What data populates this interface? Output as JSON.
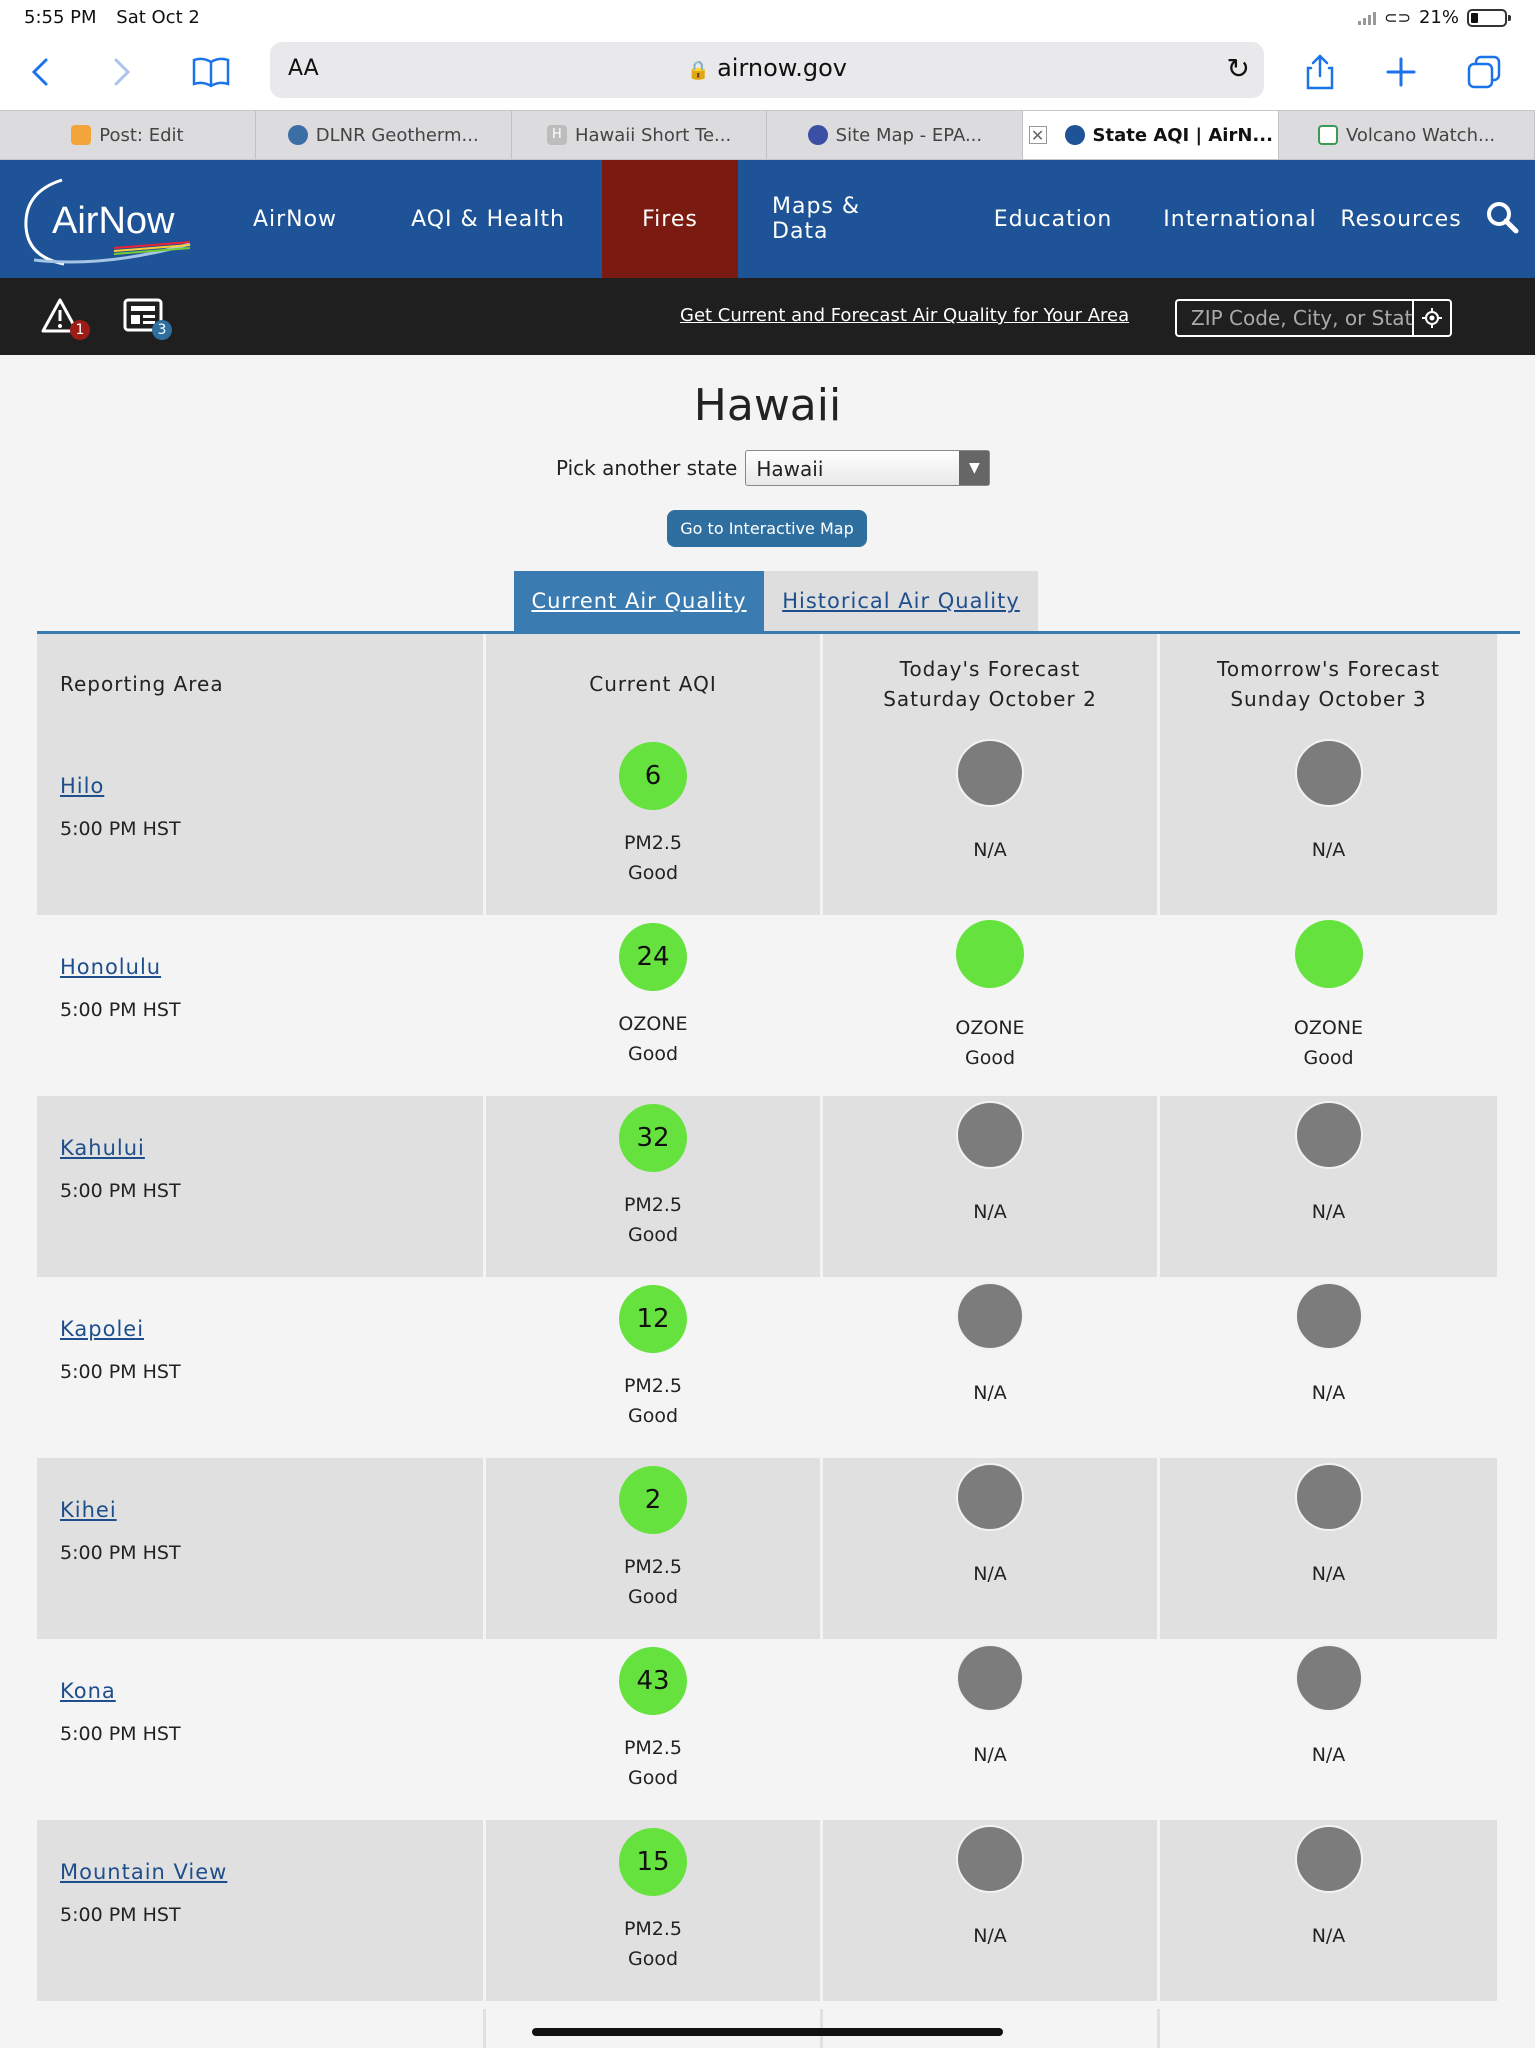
{
  "status": {
    "time": "5:55 PM",
    "date": "Sat Oct 2",
    "battery": "21%"
  },
  "browser": {
    "text_size_label": "AA",
    "url": "airnow.gov",
    "tabs": [
      {
        "label": "Post: Edit",
        "color": "#f3a43b"
      },
      {
        "label": "DLNR Geotherm...",
        "color": "#3b6ea5"
      },
      {
        "label": "Hawaii Short Te...",
        "color": "#bdbdbd"
      },
      {
        "label": "Site Map - EPA...",
        "color": "#3b4fa5"
      },
      {
        "label": "State AQI | AirN...",
        "color": "#1e5497"
      },
      {
        "label": "Volcano Watch...",
        "color": "#3d9a55"
      }
    ]
  },
  "nav": {
    "logo": "AirNow",
    "items": [
      "AirNow",
      "AQI & Health",
      "Fires",
      "Maps & Data",
      "Education",
      "International",
      "Resources"
    ]
  },
  "alert_bar": {
    "alerts_count": "1",
    "notices_count": "3",
    "link": "Get Current and Forecast Air Quality for Your Area",
    "zip_placeholder": "ZIP Code, City, or State"
  },
  "page": {
    "title": "Hawaii",
    "pick_label": "Pick another state",
    "selected_state": "Hawaii",
    "map_button": "Go to Interactive Map",
    "tab_current": "Current Air Quality",
    "tab_historical": "Historical Air Quality"
  },
  "table": {
    "headers": {
      "area": "Reporting Area",
      "current": "Current AQI",
      "today_1": "Today's Forecast",
      "today_2": "Saturday October 2",
      "tomorrow_1": "Tomorrow's Forecast",
      "tomorrow_2": "Sunday October 3"
    },
    "rows": [
      {
        "area": "Hilo",
        "time": "5:00 PM HST",
        "aqi": "6",
        "pollutant": "PM2.5",
        "category": "Good",
        "today": {
          "status": "N/A"
        },
        "tomorrow": {
          "status": "N/A"
        }
      },
      {
        "area": "Honolulu",
        "time": "5:00 PM HST",
        "aqi": "24",
        "pollutant": "OZONE",
        "category": "Good",
        "today": {
          "pollutant": "OZONE",
          "category": "Good"
        },
        "tomorrow": {
          "pollutant": "OZONE",
          "category": "Good"
        }
      },
      {
        "area": "Kahului",
        "time": "5:00 PM HST",
        "aqi": "32",
        "pollutant": "PM2.5",
        "category": "Good",
        "today": {
          "status": "N/A"
        },
        "tomorrow": {
          "status": "N/A"
        }
      },
      {
        "area": "Kapolei",
        "time": "5:00 PM HST",
        "aqi": "12",
        "pollutant": "PM2.5",
        "category": "Good",
        "today": {
          "status": "N/A"
        },
        "tomorrow": {
          "status": "N/A"
        }
      },
      {
        "area": "Kihei",
        "time": "5:00 PM HST",
        "aqi": "2",
        "pollutant": "PM2.5",
        "category": "Good",
        "today": {
          "status": "N/A"
        },
        "tomorrow": {
          "status": "N/A"
        }
      },
      {
        "area": "Kona",
        "time": "5:00 PM HST",
        "aqi": "43",
        "pollutant": "PM2.5",
        "category": "Good",
        "today": {
          "status": "N/A"
        },
        "tomorrow": {
          "status": "N/A"
        }
      },
      {
        "area": "Mountain View",
        "time": "5:00 PM HST",
        "aqi": "15",
        "pollutant": "PM2.5",
        "category": "Good",
        "today": {
          "status": "N/A"
        },
        "tomorrow": {
          "status": "N/A"
        }
      }
    ]
  },
  "colors": {
    "good": "#66e23f",
    "na": "#7c7c7c",
    "nav": "#1e5497",
    "active_nav": "#7b1a10"
  }
}
